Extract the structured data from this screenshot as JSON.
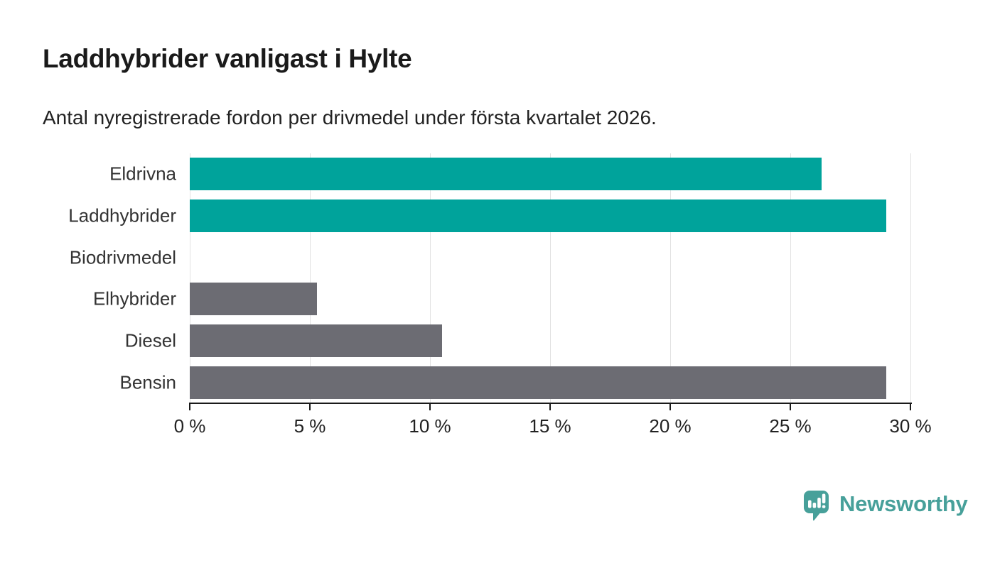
{
  "title": "Laddhybrider vanligast i Hylte",
  "subtitle": "Antal nyregistrerade fordon per drivmedel under första kvartalet 2026.",
  "chart_data": {
    "type": "bar",
    "orientation": "horizontal",
    "title": "Laddhybrider vanligast i Hylte",
    "subtitle": "Antal nyregistrerade fordon per drivmedel under första kvartalet 2026.",
    "categories": [
      "Eldrivna",
      "Laddhybrider",
      "Biodrivmedel",
      "Elhybrider",
      "Diesel",
      "Bensin"
    ],
    "values": [
      26.3,
      29,
      0,
      5.3,
      10.5,
      29
    ],
    "unit": "%",
    "bar_colors": [
      "#00a39b",
      "#00a39b",
      "#6c6c73",
      "#6c6c73",
      "#6c6c73",
      "#6c6c73"
    ],
    "xlim": [
      0,
      30
    ],
    "x_tick_values": [
      0,
      5,
      10,
      15,
      20,
      25,
      30
    ],
    "x_tick_labels": [
      "0 %",
      "5 %",
      "10 %",
      "15 %",
      "20 %",
      "25 %",
      "30 %"
    ],
    "grid": true,
    "legend": false,
    "xlabel": "",
    "ylabel": ""
  },
  "branding": {
    "logo_text": "Newsworthy",
    "logo_icon": "newsworthy-speech-bubble-bar-chart-icon",
    "logo_color": "#47a09a"
  },
  "colors": {
    "accent_teal": "#00a39b",
    "bar_gray": "#6c6c73",
    "gridline": "#e2e2e2",
    "axis": "#1a1a1a",
    "title_text": "#1a1a1a",
    "body_text": "#222222",
    "label_text": "#333333",
    "background": "#ffffff"
  }
}
